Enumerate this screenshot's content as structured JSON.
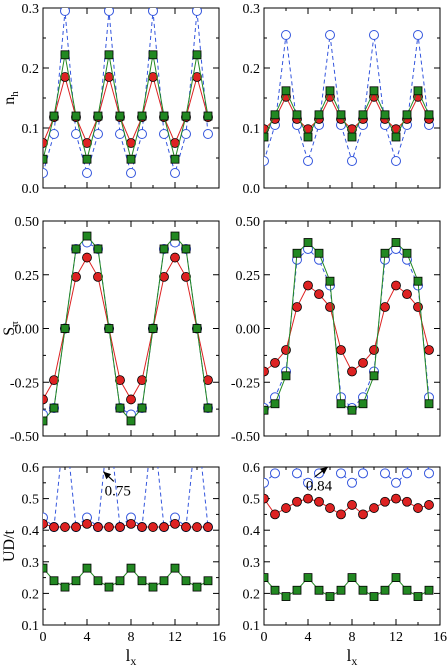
{
  "chart_data": [
    {
      "type": "line",
      "ylabel": "n",
      "ylabel_sub": "h",
      "xlabel": "",
      "xlim": [
        0,
        16
      ],
      "ylim": [
        0,
        0.3
      ],
      "xticks": [
        "0",
        "4",
        "8",
        "12",
        "16"
      ],
      "xticks_shown": false,
      "yticks": [
        "0.0",
        "0.1",
        "0.2",
        "0.3"
      ],
      "series": [
        {
          "values": [
            0.025,
            0.09,
            0.295,
            0.09,
            0.025,
            0.09,
            0.295,
            0.09,
            0.025,
            0.09,
            0.295,
            0.09,
            0.025,
            0.09,
            0.295,
            0.09
          ],
          "color": "#3355dd",
          "marker": "circle-open",
          "dash": true
        },
        {
          "values": [
            0.075,
            0.118,
            0.185,
            0.118,
            0.075,
            0.118,
            0.185,
            0.118,
            0.075,
            0.118,
            0.185,
            0.118,
            0.075,
            0.118,
            0.185,
            0.118
          ],
          "color": "#dd2222",
          "marker": "circle-filled",
          "dash": false
        },
        {
          "values": [
            0.048,
            0.12,
            0.222,
            0.12,
            0.048,
            0.12,
            0.222,
            0.12,
            0.048,
            0.12,
            0.222,
            0.12,
            0.048,
            0.12,
            0.222,
            0.12
          ],
          "color": "#228822",
          "marker": "square",
          "dash": false
        }
      ]
    },
    {
      "type": "line",
      "ylabel": "",
      "xlabel": "",
      "xlim": [
        0,
        16
      ],
      "ylim": [
        0,
        0.3
      ],
      "xticks": [
        "0",
        "4",
        "8",
        "12",
        "16"
      ],
      "xticks_shown": false,
      "yticks": [
        "0.0",
        "0.1",
        "0.2",
        "0.3"
      ],
      "series": [
        {
          "values": [
            0.045,
            0.105,
            0.255,
            0.105,
            0.045,
            0.105,
            0.255,
            0.105,
            0.045,
            0.105,
            0.255,
            0.105,
            0.045,
            0.105,
            0.255,
            0.105
          ],
          "color": "#3355dd",
          "marker": "circle-open",
          "dash": true
        },
        {
          "values": [
            0.098,
            0.115,
            0.152,
            0.115,
            0.098,
            0.115,
            0.152,
            0.115,
            0.098,
            0.115,
            0.152,
            0.115,
            0.098,
            0.115,
            0.152,
            0.115
          ],
          "color": "#dd2222",
          "marker": "circle-filled",
          "dash": false
        },
        {
          "values": [
            0.085,
            0.122,
            0.162,
            0.122,
            0.085,
            0.122,
            0.162,
            0.122,
            0.085,
            0.122,
            0.162,
            0.122,
            0.085,
            0.122,
            0.162,
            0.122
          ],
          "color": "#228822",
          "marker": "square",
          "dash": false
        }
      ]
    },
    {
      "type": "line",
      "ylabel": "S",
      "ylabel_sub": "π",
      "xlabel": "",
      "xlim": [
        0,
        16
      ],
      "ylim": [
        -0.5,
        0.5
      ],
      "xticks": [
        "0",
        "4",
        "8",
        "12",
        "16"
      ],
      "xticks_shown": false,
      "yticks": [
        "-0.50",
        "-0.25",
        "0.00",
        "0.25",
        "0.50"
      ],
      "series": [
        {
          "values": [
            -0.4,
            -0.37,
            0.0,
            0.37,
            0.4,
            0.37,
            0.0,
            -0.37,
            -0.4,
            -0.37,
            0.0,
            0.37,
            0.4,
            0.37,
            0.0,
            -0.37
          ],
          "color": "#3355dd",
          "marker": "circle-open",
          "dash": true
        },
        {
          "values": [
            -0.33,
            -0.24,
            0.0,
            0.24,
            0.33,
            0.24,
            0.0,
            -0.24,
            -0.33,
            -0.24,
            0.0,
            0.24,
            0.33,
            0.24,
            0.0,
            -0.24
          ],
          "color": "#dd2222",
          "marker": "circle-filled",
          "dash": false
        },
        {
          "values": [
            -0.43,
            -0.37,
            0.0,
            0.37,
            0.43,
            0.37,
            0.0,
            -0.37,
            -0.43,
            -0.37,
            0.0,
            0.37,
            0.43,
            0.37,
            0.0,
            -0.37
          ],
          "color": "#228822",
          "marker": "square",
          "dash": false
        }
      ]
    },
    {
      "type": "line",
      "ylabel": "",
      "xlabel": "",
      "xlim": [
        0,
        16
      ],
      "ylim": [
        -0.5,
        0.5
      ],
      "xticks": [
        "0",
        "4",
        "8",
        "12",
        "16"
      ],
      "xticks_shown": false,
      "yticks": [
        "-0.50",
        "-0.25",
        "0.00",
        "0.25",
        "0.50"
      ],
      "series": [
        {
          "values": [
            -0.37,
            -0.32,
            -0.2,
            0.32,
            0.37,
            0.32,
            0.2,
            -0.32,
            -0.37,
            -0.32,
            -0.2,
            0.32,
            0.37,
            0.32,
            0.2,
            -0.32
          ],
          "color": "#3355dd",
          "marker": "circle-open",
          "dash": true
        },
        {
          "values": [
            -0.2,
            -0.16,
            -0.1,
            0.1,
            0.2,
            0.16,
            0.1,
            -0.1,
            -0.2,
            -0.16,
            -0.1,
            0.1,
            0.2,
            0.16,
            0.1,
            -0.1
          ],
          "color": "#dd2222",
          "marker": "circle-filled",
          "dash": false
        },
        {
          "values": [
            -0.38,
            -0.35,
            -0.22,
            0.35,
            0.4,
            0.35,
            0.22,
            -0.35,
            -0.38,
            -0.35,
            -0.22,
            0.35,
            0.4,
            0.35,
            0.22,
            -0.35
          ],
          "color": "#228822",
          "marker": "square",
          "dash": false
        }
      ]
    },
    {
      "type": "line",
      "ylabel": "UD/t",
      "xlabel": "l",
      "xlabel_sub": "x",
      "xlim": [
        0,
        16
      ],
      "ylim": [
        0.1,
        0.6
      ],
      "xticks": [
        "0",
        "4",
        "8",
        "12",
        "16"
      ],
      "xticks_shown": true,
      "yticks": [
        "0.1",
        "0.2",
        "0.3",
        "0.4",
        "0.5",
        "0.6"
      ],
      "annotation": {
        "text": "0.75",
        "x": 6.8,
        "y": 0.51,
        "arrow_to": [
          5.5,
          0.585
        ]
      },
      "series": [
        {
          "values": [
            0.44,
            0.41,
            0.75,
            0.41,
            0.44,
            0.41,
            0.75,
            0.41,
            0.44,
            0.41,
            0.75,
            0.41,
            0.44,
            0.41,
            0.75,
            0.41
          ],
          "color": "#3355dd",
          "marker": "circle-open",
          "dash": true
        },
        {
          "values": [
            0.42,
            0.41,
            0.41,
            0.41,
            0.42,
            0.41,
            0.41,
            0.41,
            0.42,
            0.41,
            0.41,
            0.41,
            0.42,
            0.41,
            0.41,
            0.41
          ],
          "color": "#dd2222",
          "marker": "circle-filled",
          "dash": false
        },
        {
          "values": [
            0.28,
            0.24,
            0.22,
            0.24,
            0.28,
            0.24,
            0.22,
            0.24,
            0.28,
            0.24,
            0.22,
            0.24,
            0.28,
            0.24,
            0.22,
            0.24
          ],
          "color": "#228822",
          "marker": "square",
          "dash": false
        }
      ]
    },
    {
      "type": "line",
      "ylabel": "",
      "xlabel": "l",
      "xlabel_sub": "x",
      "xlim": [
        0,
        16
      ],
      "ylim": [
        0.1,
        0.6
      ],
      "xticks": [
        "0",
        "4",
        "8",
        "12",
        "16"
      ],
      "xticks_shown": true,
      "yticks": [
        "0.1",
        "0.2",
        "0.3",
        "0.4",
        "0.5",
        "0.6"
      ],
      "annotation": {
        "text": "0.84",
        "x": 5.0,
        "y": 0.525,
        "arrow_to": [
          5.8,
          0.6
        ]
      },
      "series": [
        {
          "values": [
            0.55,
            0.58,
            0.84,
            0.58,
            0.55,
            0.58,
            0.84,
            0.58,
            0.55,
            0.58,
            0.84,
            0.58,
            0.55,
            0.58,
            0.84,
            0.58
          ],
          "color": "#3355dd",
          "marker": "circle-open",
          "dash": true
        },
        {
          "values": [
            0.5,
            0.45,
            0.47,
            0.49,
            0.5,
            0.49,
            0.47,
            0.45,
            0.48,
            0.45,
            0.47,
            0.49,
            0.5,
            0.49,
            0.47,
            0.48
          ],
          "color": "#dd2222",
          "marker": "circle-filled",
          "dash": false
        },
        {
          "values": [
            0.25,
            0.21,
            0.19,
            0.21,
            0.25,
            0.21,
            0.19,
            0.21,
            0.25,
            0.21,
            0.19,
            0.21,
            0.25,
            0.21,
            0.19,
            0.21
          ],
          "color": "#228822",
          "marker": "square",
          "dash": false
        }
      ]
    }
  ]
}
